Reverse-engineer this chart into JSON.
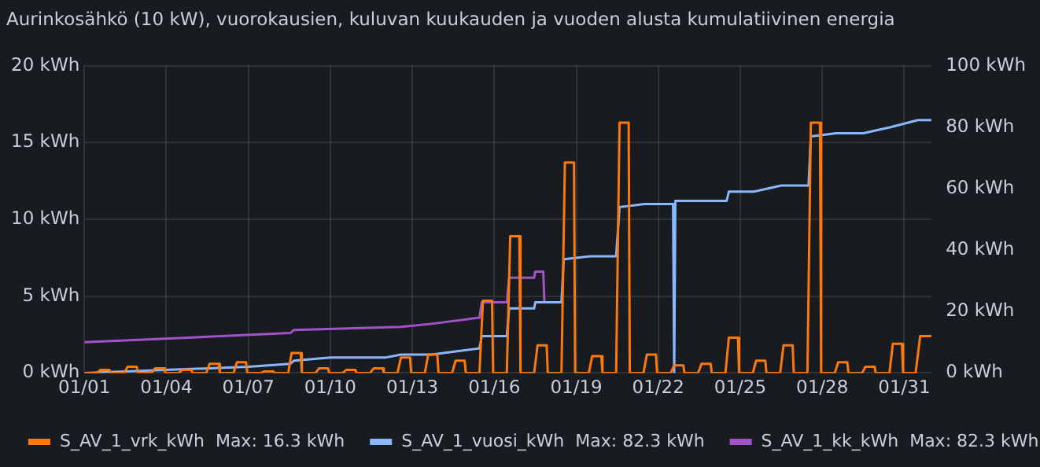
{
  "chart_data": {
    "type": "line",
    "title": "Aurinkosähkö (10 kW), vuorokausien, kuluvan kuukauden ja vuoden alusta kumulatiivinen energia",
    "xlim": [
      "--01-01",
      "--02-01"
    ],
    "xticks": [
      {
        "value": "--01-01",
        "label": "01/01"
      },
      {
        "value": "--01-04",
        "label": "01/04"
      },
      {
        "value": "--01-07",
        "label": "01/07"
      },
      {
        "value": "--01-10",
        "label": "01/10"
      },
      {
        "value": "--01-13",
        "label": "01/13"
      },
      {
        "value": "--01-16",
        "label": "01/16"
      },
      {
        "value": "--01-19",
        "label": "01/19"
      },
      {
        "value": "--01-22",
        "label": "01/22"
      },
      {
        "value": "--01-25",
        "label": "01/25"
      },
      {
        "value": "--01-28",
        "label": "01/28"
      },
      {
        "value": "--01-31",
        "label": "01/31"
      }
    ],
    "ylim": [
      0,
      20
    ],
    "yticks": [
      {
        "value": 0,
        "label": "0 kWh"
      },
      {
        "value": 5,
        "label": "5 kWh"
      },
      {
        "value": 10,
        "label": "10 kWh"
      },
      {
        "value": 15,
        "label": "15 kWh"
      },
      {
        "value": 20,
        "label": "20 kWh"
      }
    ],
    "y2lim": [
      0,
      100
    ],
    "y2ticks": [
      {
        "value": 0,
        "label": "0 kWh"
      },
      {
        "value": 20,
        "label": "20 kWh"
      },
      {
        "value": 40,
        "label": "40 kWh"
      },
      {
        "value": 60,
        "label": "60 kWh"
      },
      {
        "value": 80,
        "label": "80 kWh"
      },
      {
        "value": 100,
        "label": "100 kWh"
      }
    ],
    "grid": true,
    "legend": "bottom",
    "annotations": [
      "Max: 16.3 kWh",
      "Max: 82.3 kWh",
      "Max: 82.3 kWh"
    ],
    "series": [
      {
        "name": "S_AV_1_vrk_kWh",
        "color": "#ff780a",
        "axis": "y",
        "x": [
          "--01-01",
          "--01-01T11:00",
          "--01-01T14:00",
          "--01-01T22:00",
          "--01-01T23:00",
          "--01-02T11:00",
          "--01-02T14:00",
          "--01-02T22:00",
          "--01-02T23:00",
          "--01-03T11:00",
          "--01-03T14:00",
          "--01-03T22:00",
          "--01-03T23:00",
          "--01-04T11:00",
          "--01-04T14:00",
          "--01-04T22:00",
          "--01-04T23:00",
          "--01-05T11:00",
          "--01-05T14:00",
          "--01-05T22:00",
          "--01-05T23:00",
          "--01-06T11:00",
          "--01-06T14:00",
          "--01-06T22:00",
          "--01-06T23:00",
          "--01-07T11:00",
          "--01-07T14:00",
          "--01-07T22:00",
          "--01-07T23:00",
          "--01-08T11:00",
          "--01-08T14:00",
          "--01-08T22:00",
          "--01-08T23:00",
          "--01-09T11:00",
          "--01-09T14:00",
          "--01-09T22:00",
          "--01-09T23:00",
          "--01-10T11:00",
          "--01-10T14:00",
          "--01-10T22:00",
          "--01-10T23:00",
          "--01-11T11:00",
          "--01-11T14:00",
          "--01-11T22:00",
          "--01-11T23:00",
          "--01-12T11:00",
          "--01-12T14:00",
          "--01-12T22:00",
          "--01-12T23:00",
          "--01-13T11:00",
          "--01-13T14:00",
          "--01-13T22:00",
          "--01-13T23:00",
          "--01-14T11:00",
          "--01-14T14:00",
          "--01-14T22:00",
          "--01-14T23:00",
          "--01-15T11:00",
          "--01-15T14:00",
          "--01-15T22:00",
          "--01-15T23:00",
          "--01-16T11:00",
          "--01-16T14:00",
          "--01-16T22:00",
          "--01-16T23:00",
          "--01-17T11:00",
          "--01-17T14:00",
          "--01-17T22:00",
          "--01-17T23:00",
          "--01-18T11:00",
          "--01-18T14:00",
          "--01-18T22:00",
          "--01-18T23:00",
          "--01-19T11:00",
          "--01-19T14:00",
          "--01-19T22:00",
          "--01-19T23:00",
          "--01-20T11:00",
          "--01-20T14:00",
          "--01-20T22:00",
          "--01-20T23:00",
          "--01-21T11:00",
          "--01-21T14:00",
          "--01-21T22:00",
          "--01-21T23:00",
          "--01-22T11:00",
          "--01-22T14:00",
          "--01-22T22:00",
          "--01-22T23:00",
          "--01-23T11:00",
          "--01-23T14:00",
          "--01-23T22:00",
          "--01-23T23:00",
          "--01-24T11:00",
          "--01-24T14:00",
          "--01-24T22:00",
          "--01-24T23:00",
          "--01-25T11:00",
          "--01-25T14:00",
          "--01-25T22:00",
          "--01-25T23:00",
          "--01-26T11:00",
          "--01-26T14:00",
          "--01-26T22:00",
          "--01-26T23:00",
          "--01-27T11:00",
          "--01-27T14:00",
          "--01-27T22:00",
          "--01-27T23:00",
          "--01-28T11:00",
          "--01-28T14:00",
          "--01-28T22:00",
          "--01-28T23:00",
          "--01-29T11:00",
          "--01-29T14:00",
          "--01-29T22:00",
          "--01-29T23:00",
          "--01-30T11:00",
          "--01-30T14:00",
          "--01-30T22:00",
          "--01-30T23:00",
          "--01-31T10:00",
          "--01-31T14:00",
          "--02-01"
        ],
        "values": [
          0,
          0,
          0.2,
          0.2,
          0,
          0,
          0.4,
          0.4,
          0,
          0,
          0.3,
          0.3,
          0,
          0,
          0.2,
          0.2,
          0,
          0,
          0.6,
          0.6,
          0,
          0,
          0.7,
          0.7,
          0,
          0,
          0.1,
          0.1,
          0,
          0,
          1.3,
          1.3,
          0,
          0,
          0.3,
          0.3,
          0,
          0,
          0.2,
          0.2,
          0,
          0,
          0.3,
          0.3,
          0,
          0,
          1,
          1,
          0,
          0,
          1.2,
          1.2,
          0,
          0,
          0.8,
          0.8,
          0,
          0,
          4.7,
          4.7,
          0,
          0,
          8.9,
          8.9,
          0,
          0,
          1.8,
          1.8,
          0,
          0,
          13.7,
          13.7,
          0,
          0,
          1.1,
          1.1,
          0,
          0,
          16.3,
          16.3,
          0,
          0,
          1.2,
          1.2,
          0,
          0,
          0.5,
          0.5,
          0,
          0,
          0.6,
          0.6,
          0,
          0,
          2.3,
          2.3,
          0,
          0,
          0.8,
          0.8,
          0,
          0,
          1.8,
          1.8,
          0,
          0,
          16.3,
          16.3,
          0,
          0,
          0.7,
          0.7,
          0,
          0,
          0.4,
          0.4,
          0,
          0,
          1.9,
          1.9,
          0,
          0,
          2.4,
          2.4
        ]
      },
      {
        "name": "S_AV_1_vuosi_kWh",
        "color": "#8ab8ff",
        "axis": "y2",
        "x": [
          "--01-01",
          "--01-07",
          "--01-08T13:00",
          "--01-08T16:00",
          "--01-10",
          "--01-12",
          "--01-12T14:00",
          "--01-13T17:00",
          "--01-14T14:00",
          "--01-15T11:00",
          "--01-15T13:00",
          "--01-16T11:00",
          "--01-16T13:00",
          "--01-17T11:00",
          "--01-17T12:00",
          "--01-18T11:00",
          "--01-18T13:00",
          "--01-19T12:00",
          "--01-20T11:00",
          "--01-20T14:00",
          "--01-21T12:00",
          "--01-22T13:00",
          "--01-22T14:00",
          "--01-22T15:00",
          "--01-23T10:00",
          "--01-24T12:00",
          "--01-24T14:00",
          "--01-25T12:00",
          "--01-26T12:00",
          "--01-27T12:00",
          "--01-27T14:00",
          "--01-28T12:00",
          "--01-29T12:00",
          "--01-30T12:00",
          "--01-31T12:00",
          "--02-01"
        ],
        "values": [
          0,
          2,
          3,
          4,
          5,
          5,
          6,
          6,
          7,
          8,
          12,
          12,
          21,
          21,
          23,
          23,
          37,
          38,
          38,
          54,
          55,
          55,
          0,
          56,
          56,
          56,
          59,
          59,
          61,
          61,
          77,
          78,
          78,
          80,
          82.3,
          82.3
        ]
      },
      {
        "name": "S_AV_1_kk_kWh",
        "color": "#a352cc",
        "axis": "y2",
        "x": [
          "--01-01",
          "--01-08T13:00",
          "--01-08T16:00",
          "--01-12T14:00",
          "--01-13T17:00",
          "--01-15T11:00",
          "--01-15T13:00",
          "--01-16T11:00",
          "--01-16T13:00",
          "--01-17T11:00",
          "--01-17T12:00",
          "--01-17T19:00",
          "--01-17T20:00"
        ],
        "values": [
          10,
          13,
          14,
          15,
          16,
          18,
          23,
          23,
          31,
          31,
          33,
          33,
          23
        ]
      }
    ]
  }
}
